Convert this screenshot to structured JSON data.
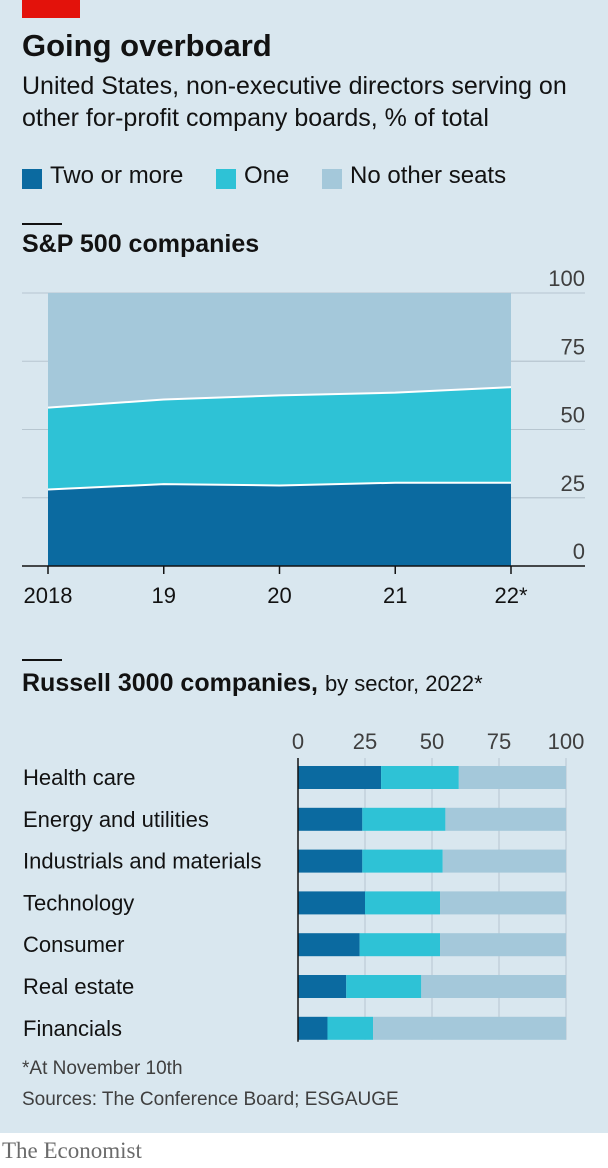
{
  "header": {
    "title": "Going overboard",
    "subtitle": "United States, non-executive directors serving on other for-profit company boards, % of total"
  },
  "legend": [
    {
      "label": "Two or more",
      "color": "#0b6aa0"
    },
    {
      "label": "One",
      "color": "#2ec2d6"
    },
    {
      "label": "No other seats",
      "color": "#a4c8da"
    }
  ],
  "panel1": {
    "title": "S&P 500 companies"
  },
  "panel2": {
    "title": "Russell 3000 companies,",
    "title_suffix": "by sector, 2022*"
  },
  "chart_data": [
    {
      "type": "area",
      "stacked": true,
      "title": "S&P 500 companies",
      "x": [
        "2018",
        "19",
        "20",
        "21",
        "22*"
      ],
      "series": [
        {
          "name": "Two or more",
          "values": [
            28,
            30,
            29.5,
            30.5,
            30.5
          ],
          "color": "#0b6aa0"
        },
        {
          "name": "One",
          "values": [
            30,
            31,
            33,
            33,
            35
          ],
          "color": "#2ec2d6"
        },
        {
          "name": "No other seats",
          "values": [
            42,
            39,
            37.5,
            36.5,
            34.5
          ],
          "color": "#a4c8da"
        }
      ],
      "ylim": [
        0,
        100
      ],
      "yticks": [
        0,
        25,
        50,
        75,
        100
      ],
      "ytick_labels": [
        "0",
        "25",
        "50",
        "75",
        "100"
      ],
      "grid": true,
      "yaxis_side": "right"
    },
    {
      "type": "bar",
      "orientation": "horizontal",
      "stacked": true,
      "title": "Russell 3000 companies, by sector, 2022*",
      "categories": [
        "Health care",
        "Energy and utilities",
        "Industrials and materials",
        "Technology",
        "Consumer",
        "Real estate",
        "Financials"
      ],
      "series": [
        {
          "name": "Two or more",
          "values": [
            31,
            24,
            24,
            25,
            23,
            18,
            11
          ],
          "color": "#0b6aa0"
        },
        {
          "name": "One",
          "values": [
            29,
            31,
            30,
            28,
            30,
            28,
            17
          ],
          "color": "#2ec2d6"
        },
        {
          "name": "No other seats",
          "values": [
            40,
            45,
            46,
            47,
            47,
            54,
            72
          ],
          "color": "#a4c8da"
        }
      ],
      "xlim": [
        0,
        100
      ],
      "xticks": [
        0,
        25,
        50,
        75,
        100
      ],
      "xtick_labels": [
        "0",
        "25",
        "50",
        "75",
        "100"
      ],
      "grid": true,
      "xaxis_side": "top"
    }
  ],
  "footer": {
    "footnote": "*At November 10th",
    "sources": "Sources: The Conference Board; ESGAUGE",
    "brand": "The Economist"
  }
}
